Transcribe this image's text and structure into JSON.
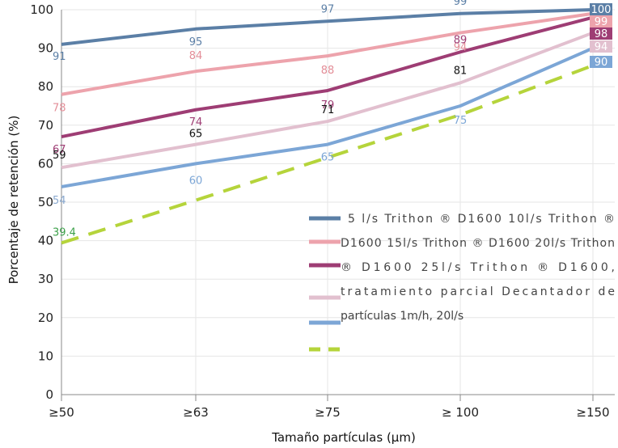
{
  "chart_data": {
    "type": "line",
    "xlabel": "Tamaño partículas (µm)",
    "ylabel": "Porcentaje de retención (%)",
    "categories": [
      "≥50",
      "≥63",
      "≥75",
      "≥ 100",
      "≥150"
    ],
    "ylim": [
      0,
      100
    ],
    "yticks": [
      0,
      10,
      20,
      30,
      40,
      50,
      60,
      70,
      80,
      90,
      100
    ],
    "grid": true,
    "legend_placement": "right",
    "series": [
      {
        "name": "5 l/s Trithon ® D1600",
        "values": [
          91,
          95,
          97,
          99,
          100
        ],
        "labels": [
          "91",
          "95",
          "97",
          "99",
          "100"
        ],
        "color": "#5b7fa6",
        "dashed": false
      },
      {
        "name": "10l/s Trithon ® D1600",
        "values": [
          78,
          84,
          88,
          94,
          99
        ],
        "labels": [
          "78",
          "84",
          "88",
          "94",
          "99"
        ],
        "color": "#eda3ac",
        "dashed": false
      },
      {
        "name": "15l/s Trithon ® D1600",
        "values": [
          67,
          74,
          79,
          89,
          98
        ],
        "labels": [
          "67",
          "74",
          "79",
          "89",
          "98"
        ],
        "color": "#9e3d74",
        "dashed": false
      },
      {
        "name": "20l/s Trithon ® D1600, tratamiento parcial",
        "values": [
          59,
          65,
          71,
          81,
          94
        ],
        "labels": [
          "59",
          "65",
          "71",
          "81",
          "94"
        ],
        "color": "#e2c0cf",
        "dashed": false
      },
      {
        "name": "25l/s Trithon ® D1600, Decantador de partículas 1m/h, 20l/s",
        "values": [
          54,
          60,
          65,
          75,
          90
        ],
        "labels": [
          "54",
          "60",
          "65",
          "75",
          "90"
        ],
        "color": "#7ca6d6",
        "dashed": false
      },
      {
        "name": "",
        "values": [
          39.4,
          50.5,
          61.6,
          72.7,
          85.5
        ],
        "labels": [
          "39.4",
          "",
          "",
          "",
          ""
        ],
        "color": "#b5d43b",
        "dashed": true
      }
    ],
    "legend_text": "5 l/s Trithon ® D1600 10l/s Trithon ® D1600 15l/s Trithon ® D1600 20l/s Trithon ® D1600 25l/s Trithon ® D1600, tratamiento parcial Decantador de partículas 1m/h, 20l/s",
    "legend_lines": [
      "5 l/s Trithon ® D1600 10l/s Trithon ®",
      "D1600 15l/s Trithon ® D1600 20l/s Trithon",
      "® D1600 25l/s Trithon ® D1600,",
      "tratamiento parcial Decantador de",
      "partículas 1m/h, 20l/s"
    ]
  }
}
